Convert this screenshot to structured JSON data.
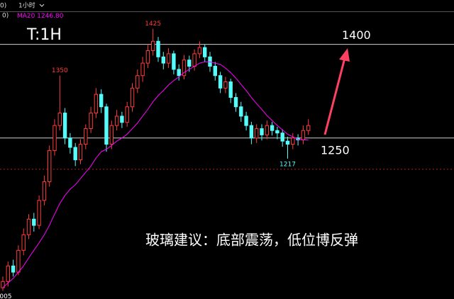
{
  "chart_data": {
    "type": "candlestick",
    "title": "T:1H",
    "toolbar": {
      "left": "0)",
      "interval": "1小时"
    },
    "ylim": [
      992,
      1453
    ],
    "up_color": "#ff3c3c",
    "down_color": "#54fcfc",
    "open": [
      1010,
      1020,
      1045,
      1035,
      1070,
      1095,
      1120,
      1110,
      1150,
      1180,
      1230,
      1270,
      1290,
      1250,
      1235,
      1215,
      1240,
      1265,
      1290,
      1320,
      1300,
      1240,
      1270,
      1285,
      1275,
      1300,
      1330,
      1350,
      1370,
      1390,
      1405,
      1380,
      1370,
      1385,
      1360,
      1350,
      1375,
      1365,
      1385,
      1395,
      1380,
      1365,
      1350,
      1330,
      1340,
      1315,
      1300,
      1285,
      1270,
      1250,
      1265,
      1255,
      1270,
      1262,
      1258,
      1245,
      1240,
      1250,
      1247,
      1262
    ],
    "high": [
      1028,
      1052,
      1055,
      1078,
      1105,
      1128,
      1130,
      1158,
      1190,
      1238,
      1280,
      1350,
      1298,
      1258,
      1242,
      1248,
      1272,
      1300,
      1330,
      1328,
      1305,
      1278,
      1295,
      1292,
      1308,
      1338,
      1360,
      1380,
      1400,
      1425,
      1412,
      1388,
      1394,
      1390,
      1368,
      1383,
      1382,
      1392,
      1405,
      1400,
      1388,
      1372,
      1356,
      1348,
      1345,
      1322,
      1308,
      1292,
      1276,
      1272,
      1272,
      1278,
      1276,
      1268,
      1264,
      1252,
      1258,
      1256,
      1270,
      1280
    ],
    "low": [
      1005,
      1012,
      1028,
      1030,
      1062,
      1088,
      1100,
      1104,
      1142,
      1172,
      1222,
      1262,
      1240,
      1225,
      1205,
      1208,
      1232,
      1258,
      1282,
      1290,
      1228,
      1232,
      1262,
      1266,
      1268,
      1292,
      1322,
      1340,
      1362,
      1382,
      1372,
      1360,
      1362,
      1352,
      1342,
      1344,
      1356,
      1358,
      1378,
      1372,
      1356,
      1342,
      1322,
      1322,
      1306,
      1292,
      1276,
      1262,
      1240,
      1242,
      1246,
      1248,
      1254,
      1248,
      1236,
      1217,
      1232,
      1238,
      1240,
      1255
    ],
    "close": [
      1020,
      1045,
      1035,
      1070,
      1095,
      1120,
      1110,
      1150,
      1180,
      1230,
      1270,
      1290,
      1250,
      1235,
      1215,
      1240,
      1265,
      1290,
      1320,
      1300,
      1240,
      1270,
      1285,
      1275,
      1300,
      1330,
      1350,
      1370,
      1390,
      1405,
      1380,
      1370,
      1385,
      1360,
      1350,
      1375,
      1365,
      1385,
      1395,
      1380,
      1365,
      1350,
      1330,
      1340,
      1315,
      1300,
      1285,
      1270,
      1250,
      1265,
      1255,
      1270,
      1262,
      1258,
      1245,
      1240,
      1250,
      1247,
      1262,
      1270
    ],
    "ma": {
      "name": "MA20",
      "value_label": "1246.80",
      "color": "#ff00ff",
      "values": [
        1010,
        1018,
        1025,
        1035,
        1045,
        1058,
        1070,
        1082,
        1095,
        1110,
        1128,
        1145,
        1158,
        1168,
        1175,
        1185,
        1195,
        1205,
        1218,
        1228,
        1232,
        1238,
        1245,
        1250,
        1256,
        1265,
        1274,
        1285,
        1296,
        1308,
        1318,
        1326,
        1335,
        1342,
        1348,
        1355,
        1360,
        1365,
        1370,
        1372,
        1372,
        1370,
        1368,
        1362,
        1355,
        1346,
        1336,
        1326,
        1315,
        1305,
        1296,
        1286,
        1278,
        1270,
        1263,
        1256,
        1252,
        1248,
        1247,
        1246.8
      ]
    },
    "levels": [
      {
        "value": 1400,
        "label": "1400",
        "color": "#d0d0d0"
      },
      {
        "value": 1250,
        "label": "1250",
        "color": "#d0d0d0"
      },
      {
        "value": 1200,
        "color": "#b02020",
        "style": "dashed"
      }
    ],
    "extremes": [
      {
        "value": 1425,
        "label": "1425",
        "color": "#ff3c3c",
        "at": "high"
      },
      {
        "value": 1350,
        "label": "1350",
        "color": "#ff3c3c",
        "at": "high"
      },
      {
        "value": 1217,
        "label": "1217",
        "color": "#54fcfc",
        "at": "low"
      },
      {
        "value": 1005,
        "label": "005",
        "color": "#ffffff",
        "at": "low"
      }
    ],
    "note": "玻璃建议：底部震荡，低位博反弹"
  }
}
